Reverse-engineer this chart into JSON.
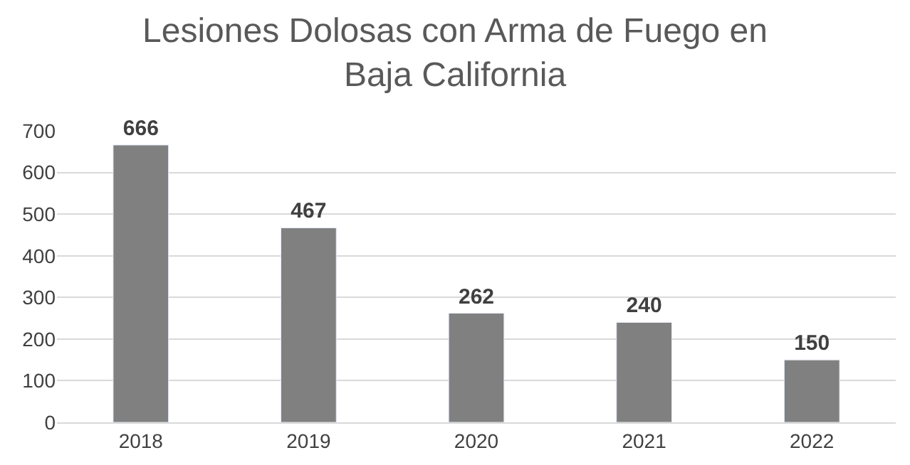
{
  "chart_data": {
    "type": "bar",
    "title": "Lesiones Dolosas con Arma de Fuego en\nBaja California",
    "categories": [
      "2018",
      "2019",
      "2020",
      "2021",
      "2022"
    ],
    "values": [
      666,
      467,
      262,
      240,
      150
    ],
    "color": "#808080",
    "ylim": [
      0,
      700
    ],
    "yticks": [
      0,
      100,
      200,
      300,
      400,
      500,
      600,
      700
    ],
    "grid": "y",
    "data_labels": true,
    "legend": false
  }
}
